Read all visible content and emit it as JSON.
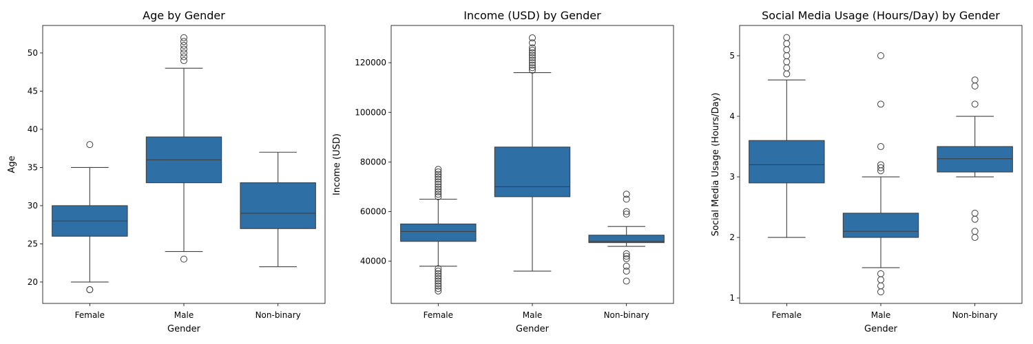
{
  "chart_data": [
    {
      "type": "box",
      "title": "Age by Gender",
      "xlabel": "Gender",
      "ylabel": "Age",
      "categories": [
        "Female",
        "Male",
        "Non-binary"
      ],
      "ylim": [
        17.2,
        53.6
      ],
      "yticks": [
        20,
        25,
        30,
        35,
        40,
        45,
        50
      ],
      "color": "#2e6fa6",
      "boxes": [
        {
          "category": "Female",
          "whisker_low": 20,
          "q1": 26,
          "median": 28,
          "q3": 30,
          "whisker_high": 35,
          "outliers": [
            38,
            19,
            19
          ]
        },
        {
          "category": "Male",
          "whisker_low": 24,
          "q1": 33,
          "median": 36,
          "q3": 39,
          "whisker_high": 48,
          "outliers": [
            52,
            51.5,
            51,
            50.5,
            50,
            49.5,
            49,
            23
          ]
        },
        {
          "category": "Non-binary",
          "whisker_low": 22,
          "q1": 27,
          "median": 29,
          "q3": 33,
          "whisker_high": 37,
          "outliers": []
        }
      ]
    },
    {
      "type": "box",
      "title": "Income (USD) by Gender",
      "xlabel": "Gender",
      "ylabel": "Income (USD)",
      "categories": [
        "Female",
        "Male",
        "Non-binary"
      ],
      "ylim": [
        23000,
        135000
      ],
      "yticks": [
        40000,
        60000,
        80000,
        100000,
        120000
      ],
      "color": "#2e6fa6",
      "boxes": [
        {
          "category": "Female",
          "whisker_low": 38000,
          "q1": 48000,
          "median": 52000,
          "q3": 55000,
          "whisker_high": 65000,
          "outliers": [
            77000,
            76000,
            75000,
            74000,
            73000,
            72000,
            71000,
            70000,
            69000,
            68000,
            67000,
            66000,
            37000,
            36000,
            35000,
            34000,
            33000,
            32000,
            31000,
            30000,
            29000,
            28000
          ]
        },
        {
          "category": "Male",
          "whisker_low": 36000,
          "q1": 66000,
          "median": 70000,
          "q3": 86000,
          "whisker_high": 116000,
          "outliers": [
            130000,
            128000,
            126000,
            125000,
            124000,
            123000,
            122000,
            121000,
            120000,
            119000,
            118000,
            117000
          ]
        },
        {
          "category": "Non-binary",
          "whisker_low": 46000,
          "q1": 47500,
          "median": 48000,
          "q3": 50500,
          "whisker_high": 54000,
          "outliers": [
            67000,
            65000,
            60000,
            59000,
            43000,
            42000,
            41000,
            38000,
            36000,
            32000
          ]
        }
      ]
    },
    {
      "type": "box",
      "title": "Social Media Usage (Hours/Day) by Gender",
      "xlabel": "Gender",
      "ylabel": "Social Media Usage (Hours/Day)",
      "categories": [
        "Female",
        "Male",
        "Non-binary"
      ],
      "ylim": [
        0.91,
        5.5
      ],
      "yticks": [
        1,
        2,
        3,
        4,
        5
      ],
      "color": "#2e6fa6",
      "boxes": [
        {
          "category": "Female",
          "whisker_low": 2.0,
          "q1": 2.9,
          "median": 3.2,
          "q3": 3.6,
          "whisker_high": 4.6,
          "outliers": [
            5.3,
            5.2,
            5.1,
            5.0,
            4.9,
            4.8,
            4.7
          ]
        },
        {
          "category": "Male",
          "whisker_low": 1.5,
          "q1": 2.0,
          "median": 2.1,
          "q3": 2.4,
          "whisker_high": 3.0,
          "outliers": [
            5.0,
            4.2,
            3.5,
            3.2,
            3.15,
            3.1,
            1.4,
            1.3,
            1.2,
            1.1
          ]
        },
        {
          "category": "Non-binary",
          "whisker_low": 3.0,
          "q1": 3.08,
          "median": 3.3,
          "q3": 3.5,
          "whisker_high": 4.0,
          "outliers": [
            4.6,
            4.5,
            4.2,
            2.4,
            2.3,
            2.1,
            2.0
          ]
        }
      ]
    }
  ]
}
